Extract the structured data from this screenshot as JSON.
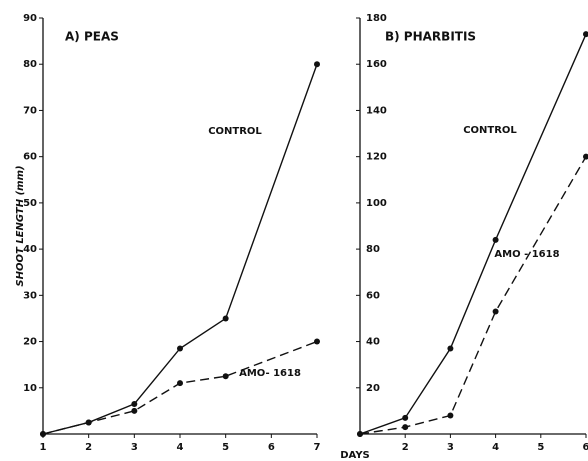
{
  "chart_data": [
    {
      "type": "line",
      "title": "A) PEAS",
      "ylabel": "SHOOT LENGTH (mm)",
      "xlabel": "DAYS",
      "xlim": [
        1,
        7
      ],
      "ylim": [
        0,
        90
      ],
      "xticks": [
        1,
        2,
        3,
        4,
        5,
        6,
        7
      ],
      "yticks": [
        10,
        20,
        30,
        40,
        50,
        60,
        70,
        80,
        90
      ],
      "series": [
        {
          "name": "CONTROL",
          "color": "#111111",
          "dashed": false,
          "x": [
            1,
            2,
            3,
            4,
            5,
            7
          ],
          "values": [
            0,
            2.5,
            6.5,
            18.5,
            25,
            80
          ]
        },
        {
          "name": "AMO- 1618",
          "color": "#111111",
          "dashed": true,
          "x": [
            1,
            2,
            3,
            4,
            5,
            7
          ],
          "values": [
            0,
            2.5,
            5,
            11,
            12.5,
            20
          ]
        }
      ]
    },
    {
      "type": "line",
      "title": "B) PHARBITIS",
      "xlim": [
        1,
        6
      ],
      "ylim": [
        0,
        180
      ],
      "xticks": [
        2,
        3,
        4,
        5,
        6
      ],
      "yticks": [
        20,
        40,
        60,
        80,
        100,
        120,
        140,
        160,
        180
      ],
      "series": [
        {
          "name": "CONTROL",
          "color": "#111111",
          "dashed": false,
          "x": [
            1,
            2,
            3,
            4,
            6
          ],
          "values": [
            0,
            7,
            37,
            84,
            173
          ]
        },
        {
          "name": "AMO - 1618",
          "color": "#111111",
          "dashed": true,
          "x": [
            1,
            2,
            3,
            4,
            6
          ],
          "values": [
            0,
            3,
            8,
            53,
            120
          ]
        }
      ]
    }
  ]
}
